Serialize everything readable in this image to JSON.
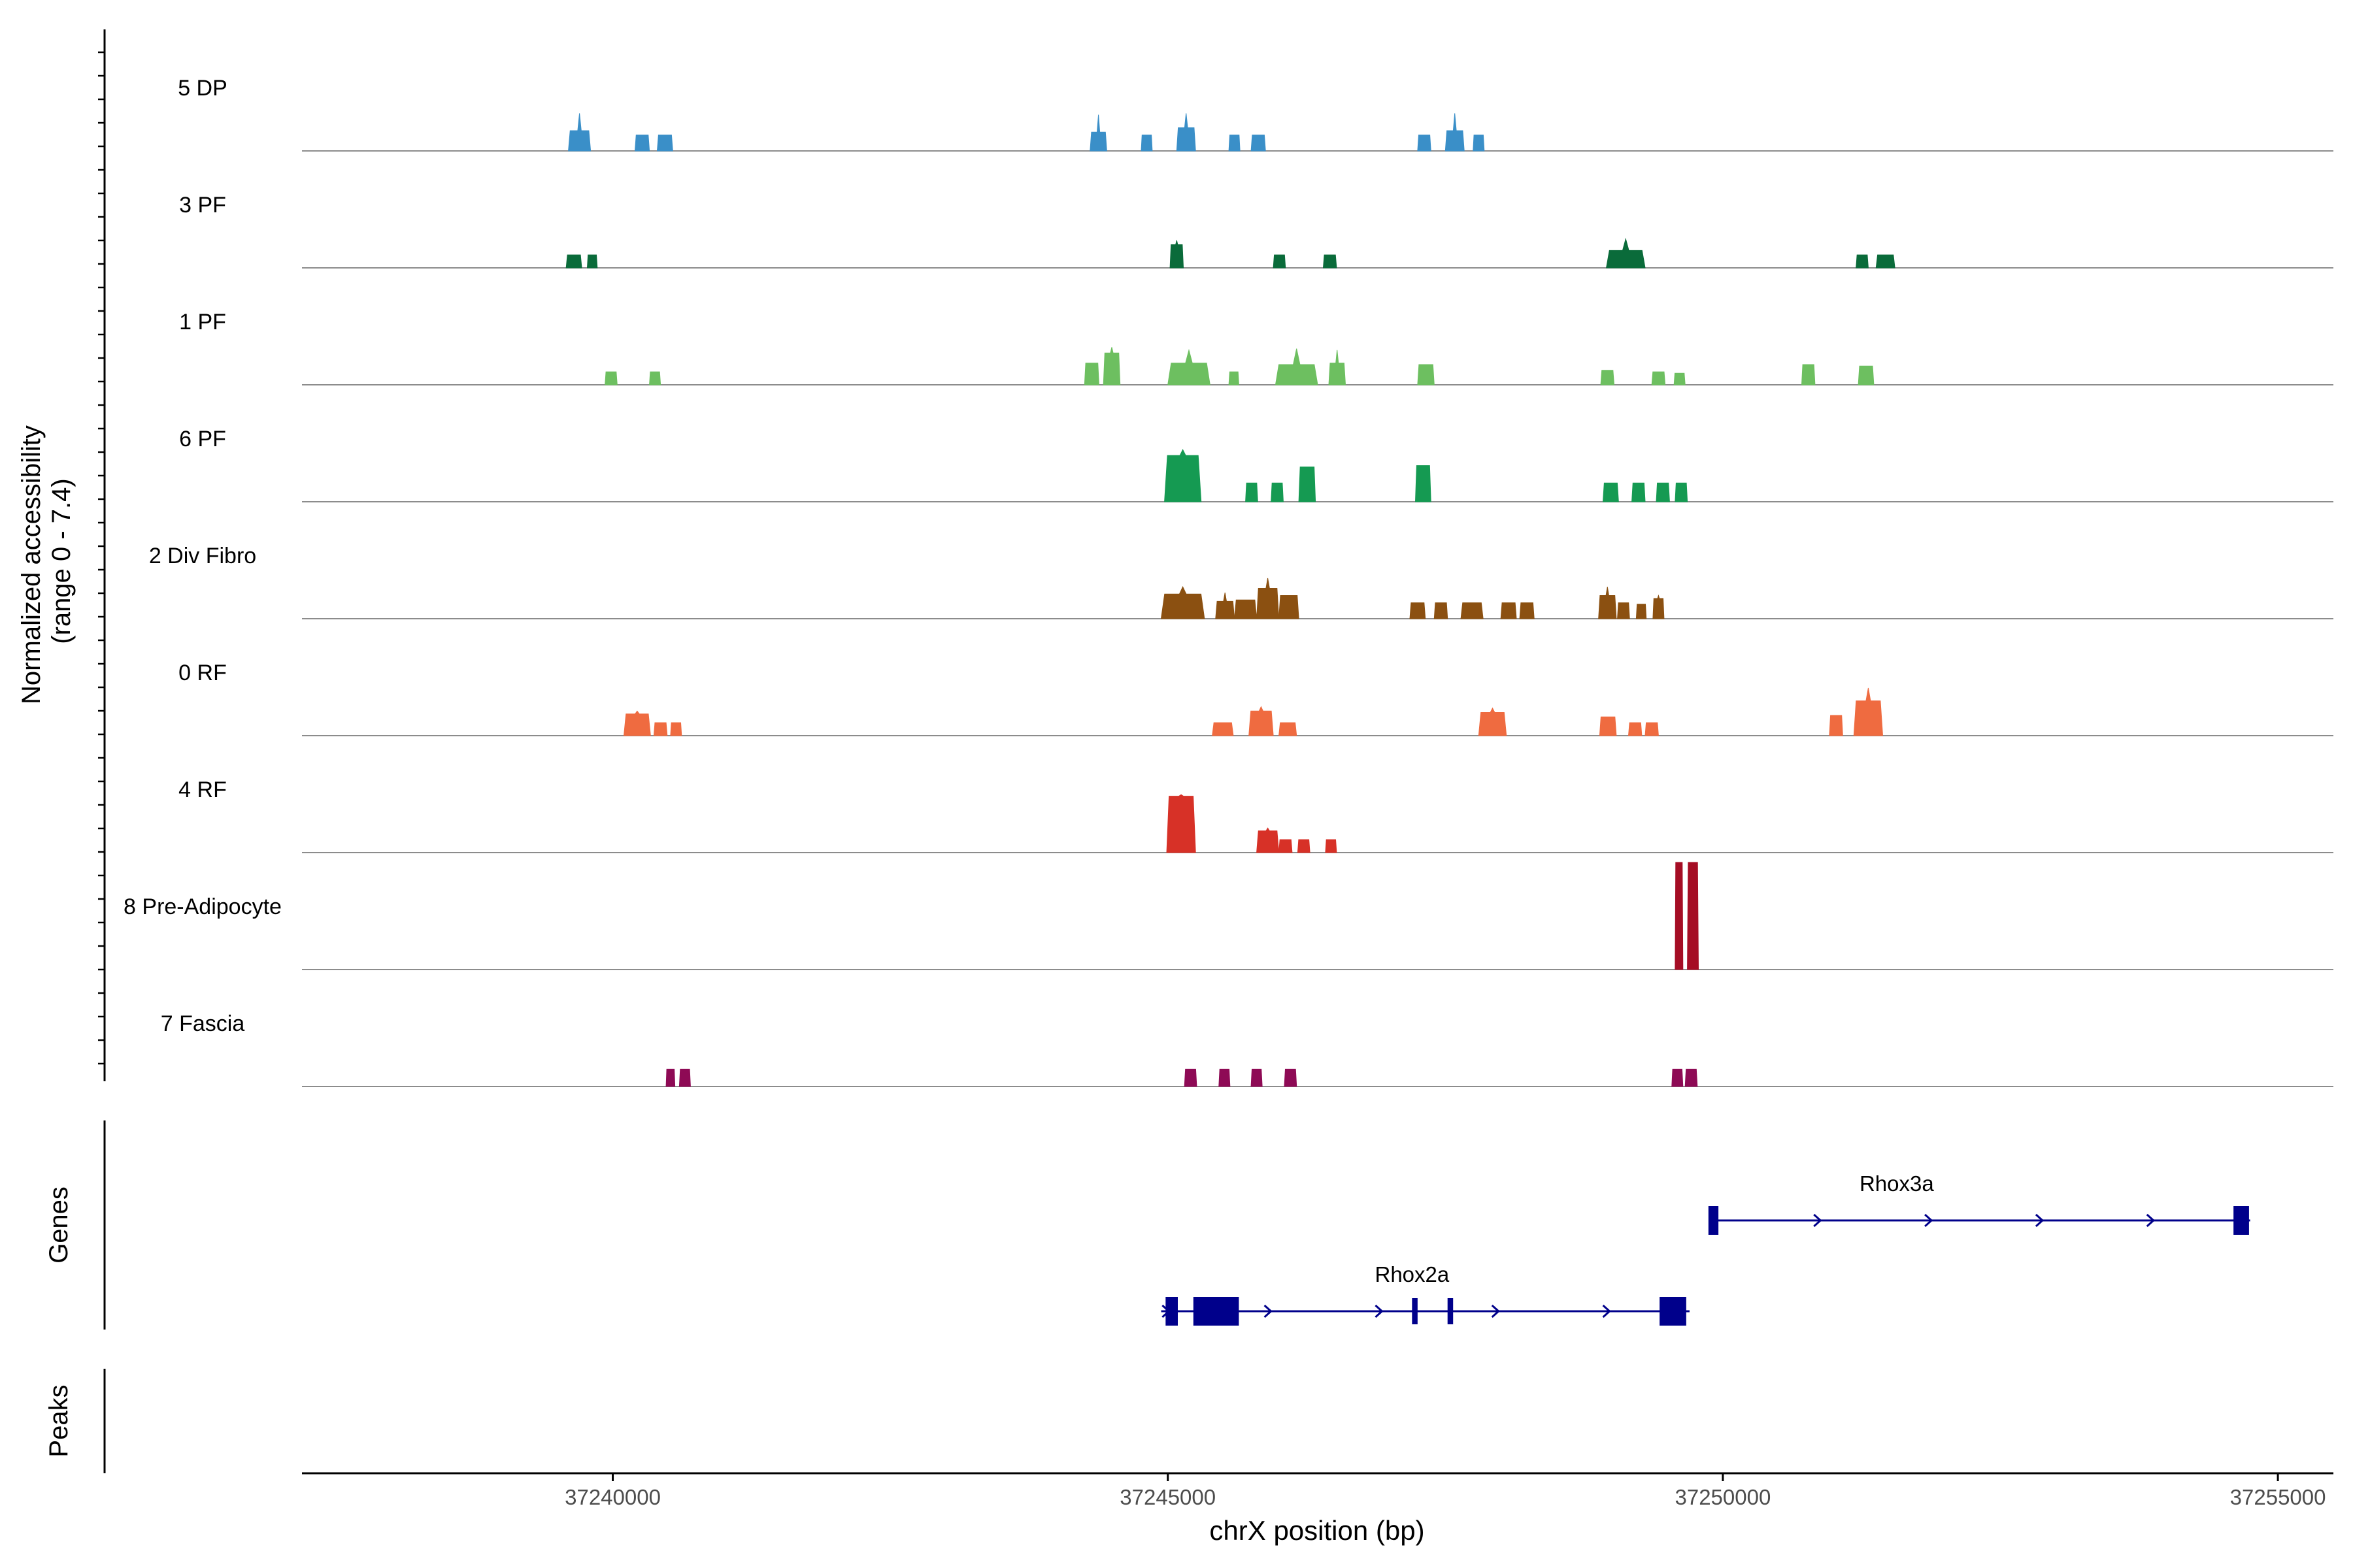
{
  "chart_data": {
    "type": "area",
    "title": "",
    "ylabel_line1": "Normalized accessibility",
    "ylabel_line2": "(range 0 - 7.4)",
    "xlabel": "chrX position (bp)",
    "xlim": [
      37237200,
      37255500
    ],
    "ylim": [
      0,
      7.4
    ],
    "x_ticks": [
      37240000,
      37245000,
      37250000,
      37255000
    ],
    "x_tick_labels": [
      "37240000",
      "37245000",
      "37250000",
      "37255000"
    ],
    "series": [
      {
        "name": "5 DP",
        "color": "#3a8fc8",
        "peaks": [
          [
            37239600,
            37239800,
            1.4,
            2.6
          ],
          [
            37240200,
            37240330,
            1.1,
            1.1
          ],
          [
            37240400,
            37240540,
            1.1,
            1.1
          ],
          [
            37244300,
            37244450,
            1.3,
            2.5
          ],
          [
            37244760,
            37244860,
            1.1,
            1.1
          ],
          [
            37245080,
            37245250,
            1.6,
            2.6
          ],
          [
            37245550,
            37245650,
            1.1,
            1.1
          ],
          [
            37245750,
            37245880,
            1.1,
            1.1
          ],
          [
            37247250,
            37247370,
            1.1,
            1.1
          ],
          [
            37247500,
            37247670,
            1.4,
            2.6
          ],
          [
            37247750,
            37247850,
            1.1,
            1.1
          ]
        ]
      },
      {
        "name": "3 PF",
        "color": "#0a6b3a",
        "peaks": [
          [
            37239580,
            37239720,
            0.9,
            0.9
          ],
          [
            37239770,
            37239860,
            0.9,
            0.9
          ],
          [
            37245020,
            37245140,
            1.6,
            1.9
          ],
          [
            37245950,
            37246060,
            0.9,
            0.9
          ],
          [
            37246400,
            37246520,
            0.9,
            0.9
          ],
          [
            37248950,
            37249300,
            1.2,
            2.0
          ],
          [
            37251200,
            37251310,
            0.9,
            0.9
          ],
          [
            37251380,
            37251550,
            0.9,
            0.9
          ]
        ]
      },
      {
        "name": "1 PF",
        "color": "#6dbf60",
        "peaks": [
          [
            37239930,
            37240040,
            0.9,
            0.9
          ],
          [
            37240330,
            37240430,
            0.9,
            0.9
          ],
          [
            37244250,
            37244380,
            1.5,
            1.5
          ],
          [
            37244420,
            37244570,
            2.2,
            2.6
          ],
          [
            37245000,
            37245380,
            1.5,
            2.4
          ],
          [
            37245550,
            37245640,
            0.9,
            0.9
          ],
          [
            37245970,
            37246350,
            1.4,
            2.5
          ],
          [
            37246450,
            37246600,
            1.5,
            2.4
          ],
          [
            37247250,
            37247400,
            1.4,
            1.4
          ],
          [
            37248900,
            37249020,
            1.0,
            1.0
          ],
          [
            37249360,
            37249480,
            0.9,
            0.9
          ],
          [
            37249560,
            37249660,
            0.8,
            0.8
          ],
          [
            37250710,
            37250830,
            1.4,
            1.4
          ],
          [
            37251220,
            37251360,
            1.3,
            1.3
          ]
        ]
      },
      {
        "name": "6 PF",
        "color": "#159a52",
        "peaks": [
          [
            37244970,
            37245300,
            3.2,
            3.6
          ],
          [
            37245700,
            37245810,
            1.3,
            1.3
          ],
          [
            37245930,
            37246040,
            1.3,
            1.3
          ],
          [
            37246180,
            37246330,
            2.4,
            2.4
          ],
          [
            37247230,
            37247370,
            2.5,
            2.5
          ],
          [
            37248920,
            37249060,
            1.3,
            1.3
          ],
          [
            37249180,
            37249300,
            1.3,
            1.3
          ],
          [
            37249400,
            37249520,
            1.3,
            1.3
          ],
          [
            37249570,
            37249680,
            1.3,
            1.3
          ]
        ]
      },
      {
        "name": "2 Div Fibro",
        "color": "#8b5011",
        "peaks": [
          [
            37244940,
            37245330,
            1.7,
            2.2
          ],
          [
            37245430,
            37245600,
            1.2,
            1.8
          ],
          [
            37245600,
            37245800,
            1.3,
            1.3
          ],
          [
            37245800,
            37246000,
            2.1,
            2.8
          ],
          [
            37246000,
            37246180,
            1.6,
            1.6
          ],
          [
            37247180,
            37247320,
            1.1,
            1.1
          ],
          [
            37247400,
            37247520,
            1.1,
            1.1
          ],
          [
            37247640,
            37247840,
            1.1,
            1.1
          ],
          [
            37248000,
            37248140,
            1.1,
            1.1
          ],
          [
            37248170,
            37248300,
            1.1,
            1.1
          ],
          [
            37248880,
            37249040,
            1.6,
            2.2
          ],
          [
            37249050,
            37249160,
            1.1,
            1.1
          ],
          [
            37249220,
            37249310,
            1.0,
            1.0
          ],
          [
            37249370,
            37249470,
            1.4,
            1.6
          ]
        ]
      },
      {
        "name": "0 RF",
        "color": "#ef6b40",
        "peaks": [
          [
            37240100,
            37240340,
            1.5,
            1.7
          ],
          [
            37240370,
            37240490,
            0.9,
            0.9
          ],
          [
            37240520,
            37240620,
            0.9,
            0.9
          ],
          [
            37245400,
            37245590,
            0.9,
            0.9
          ],
          [
            37245730,
            37245950,
            1.7,
            2.0
          ],
          [
            37246000,
            37246160,
            0.9,
            0.9
          ],
          [
            37247800,
            37248050,
            1.6,
            1.9
          ],
          [
            37248890,
            37249040,
            1.3,
            1.3
          ],
          [
            37249150,
            37249270,
            0.9,
            0.9
          ],
          [
            37249300,
            37249420,
            0.9,
            0.9
          ],
          [
            37250960,
            37251080,
            1.4,
            1.4
          ],
          [
            37251180,
            37251440,
            2.4,
            3.3
          ]
        ]
      },
      {
        "name": "4 RF",
        "color": "#d73127",
        "peaks": [
          [
            37244990,
            37245250,
            3.9,
            4.0
          ],
          [
            37245800,
            37246000,
            1.5,
            1.7
          ],
          [
            37246000,
            37246120,
            0.9,
            0.9
          ],
          [
            37246170,
            37246280,
            0.9,
            0.9
          ],
          [
            37246420,
            37246520,
            0.9,
            0.9
          ]
        ]
      },
      {
        "name": "8 Pre-Adipocyte",
        "color": "#a50d24",
        "peaks": [
          [
            37249570,
            37249640,
            7.4,
            7.4
          ],
          [
            37249680,
            37249780,
            7.4,
            7.4
          ]
        ]
      },
      {
        "name": "7 Fascia",
        "color": "#8e0a55",
        "peaks": [
          [
            37240480,
            37240560,
            1.2,
            1.2
          ],
          [
            37240600,
            37240700,
            1.2,
            1.2
          ],
          [
            37245150,
            37245260,
            1.2,
            1.2
          ],
          [
            37245460,
            37245560,
            1.2,
            1.2
          ],
          [
            37245750,
            37245850,
            1.2,
            1.2
          ],
          [
            37246050,
            37246160,
            1.2,
            1.2
          ],
          [
            37249540,
            37249640,
            1.2,
            1.2
          ],
          [
            37249660,
            37249770,
            1.2,
            1.2
          ]
        ]
      }
    ],
    "genes_label": "Genes",
    "peaks_label": "Peaks",
    "gene_color": "#00008b",
    "genes": [
      {
        "name": "Rhox3a",
        "start": 37249880,
        "end": 37254750,
        "row": 1,
        "exons": [
          [
            37249870,
            37249960
          ],
          [
            37254600,
            37254740
          ]
        ],
        "arrows": [
          37250850,
          37251850,
          37252850,
          37253850
        ]
      },
      {
        "name": "Rhox2a",
        "start": 37244940,
        "end": 37249700,
        "row": 2,
        "exons": [
          [
            37244980,
            37245090
          ],
          [
            37245230,
            37245640
          ],
          [
            37247200,
            37247250
          ],
          [
            37247520,
            37247570
          ],
          [
            37249430,
            37249670
          ]
        ],
        "arrows": [
          37244980,
          37245900,
          37246900,
          37247950,
          37248950
        ]
      }
    ]
  }
}
